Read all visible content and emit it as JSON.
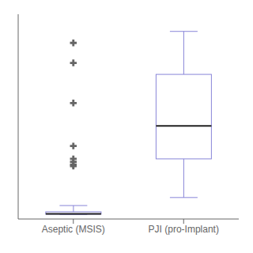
{
  "chart_data": {
    "type": "box",
    "categories": [
      "Aseptic (MSIS)",
      "PJI (pro-Implant)"
    ],
    "boxes": [
      {
        "median": 3,
        "q1": 2,
        "q3": 10,
        "whislo": 1,
        "whishi": 32,
        "fliers": [
          600,
          530,
          390,
          240,
          195,
          185,
          175,
          170
        ]
      },
      {
        "median": 310,
        "q1": 195,
        "q3": 490,
        "whislo": 60,
        "whishi": 640,
        "fliers": []
      }
    ],
    "ylim": [
      -15,
      700
    ],
    "yticks": [],
    "tick_labels": "x",
    "grid": false
  }
}
